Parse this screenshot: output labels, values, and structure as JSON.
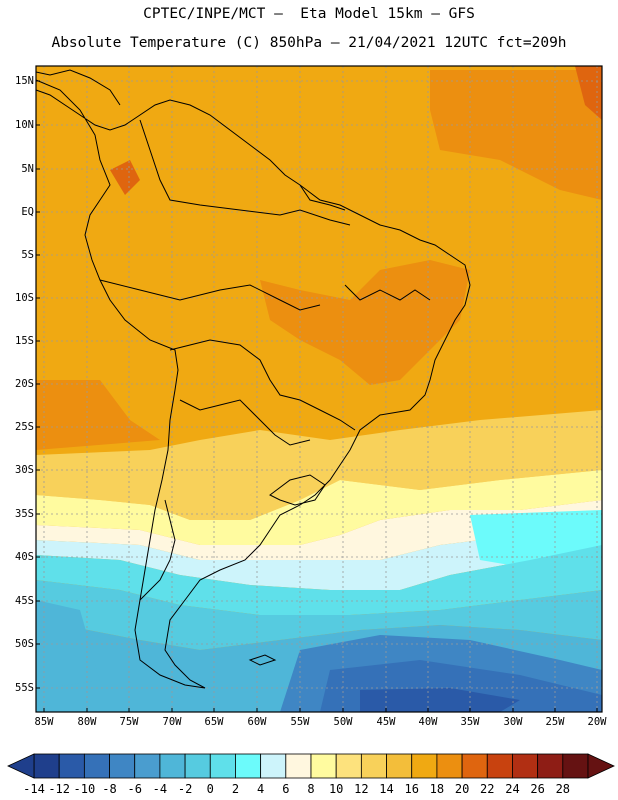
{
  "title_line1": "CPTEC/INPE/MCT –  Eta Model 15km – GFS",
  "title_line2": "Absolute Temperature (C) 850hPa – 21/04/2021 12UTC fct=209h",
  "lat_labels": [
    "15N",
    "10N",
    "5N",
    "EQ",
    "5S",
    "10S",
    "15S",
    "20S",
    "25S",
    "30S",
    "35S",
    "40S",
    "45S",
    "50S",
    "55S"
  ],
  "lon_labels": [
    "85W",
    "80W",
    "75W",
    "70W",
    "65W",
    "60W",
    "55W",
    "50W",
    "45W",
    "40W",
    "35W",
    "30W",
    "25W",
    "20W"
  ],
  "colorbar": {
    "labels": [
      "-14",
      "-12",
      "-10",
      "-8",
      "-6",
      "-4",
      "-2",
      "0",
      "2",
      "4",
      "6",
      "8",
      "10",
      "12",
      "14",
      "16",
      "18",
      "20",
      "22",
      "24",
      "26",
      "28"
    ],
    "colors": [
      "#1f3f8c",
      "#2a5aa8",
      "#3571b8",
      "#3f86c4",
      "#4a9dcf",
      "#4fb6d8",
      "#56cbe0",
      "#5fe0ea",
      "#6cfbfb",
      "#cdf4fb",
      "#fff7df",
      "#fffb9f",
      "#fde27d",
      "#f8d15a",
      "#f3be3a",
      "#f0a912",
      "#ec8f10",
      "#df650f",
      "#c8420f",
      "#b12f13",
      "#8e1d15",
      "#651212"
    ]
  },
  "colors": {
    "land_warm": "#f0a912",
    "land_hot": "#ec8f10",
    "cool_south": "#4fb6d8",
    "cold_south": "#2a5aa8"
  }
}
